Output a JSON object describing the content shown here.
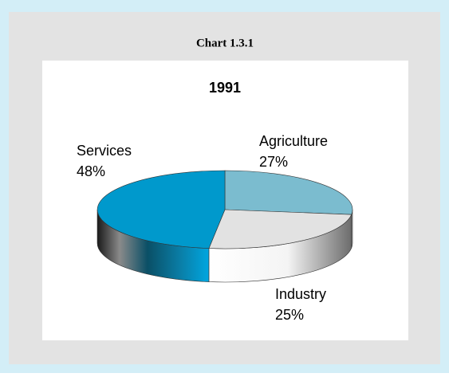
{
  "chart_data": {
    "type": "pie",
    "heading": "Chart 1.3.1",
    "title": "1991",
    "categories": [
      "Agriculture",
      "Industry",
      "Services"
    ],
    "values": [
      27,
      25,
      48
    ],
    "value_labels": [
      "27%",
      "25%",
      "48%"
    ],
    "colors": [
      "#7bbccf",
      "#e2e2e2",
      "#0099cc"
    ]
  }
}
